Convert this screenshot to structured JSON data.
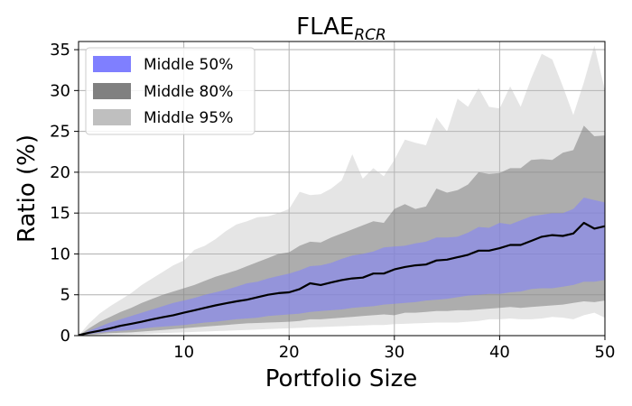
{
  "chart_data": {
    "type": "area",
    "title": "FLAE",
    "title_subscript": "RCR",
    "xlabel": "Portfolio Size",
    "ylabel": "Ratio (%)",
    "xlim": [
      0,
      50
    ],
    "ylim": [
      0,
      36
    ],
    "xticks": [
      10,
      20,
      30,
      40,
      50
    ],
    "yticks": [
      0,
      5,
      10,
      15,
      20,
      25,
      30,
      35
    ],
    "grid": true,
    "legend_position": "top-left",
    "x": [
      1,
      2,
      3,
      4,
      5,
      6,
      7,
      8,
      9,
      10,
      11,
      12,
      13,
      14,
      15,
      16,
      17,
      18,
      19,
      20,
      21,
      22,
      23,
      24,
      25,
      26,
      27,
      28,
      29,
      30,
      31,
      32,
      33,
      34,
      35,
      36,
      37,
      38,
      39,
      40,
      41,
      42,
      43,
      44,
      45,
      46,
      47,
      48,
      49,
      50
    ],
    "series": [
      {
        "name": "Middle 95%",
        "color": "#bfbfbf",
        "opacity": 0.4,
        "lower": [
          0,
          0,
          0.05,
          0.1,
          0.15,
          0.2,
          0.25,
          0.3,
          0.35,
          0.4,
          0.45,
          0.5,
          0.55,
          0.6,
          0.65,
          0.7,
          0.75,
          0.8,
          0.85,
          0.9,
          0.95,
          1.0,
          1.05,
          1.1,
          1.15,
          1.2,
          1.25,
          1.3,
          1.3,
          1.4,
          1.45,
          1.5,
          1.55,
          1.6,
          1.6,
          1.6,
          1.7,
          1.8,
          2.0,
          2.0,
          2.1,
          2.0,
          2.0,
          2.1,
          2.3,
          2.2,
          2.0,
          2.5,
          2.8,
          2.2
        ],
        "upper": [
          1.5,
          2.7,
          3.6,
          4.4,
          5.2,
          6.2,
          7.0,
          7.8,
          8.6,
          9.2,
          10.5,
          11.0,
          11.8,
          12.8,
          13.6,
          14.0,
          14.5,
          14.6,
          15.0,
          15.5,
          17.6,
          17.2,
          17.3,
          18.0,
          19.0,
          22.2,
          19.2,
          20.5,
          19.5,
          21.5,
          24.0,
          23.6,
          23.3,
          26.7,
          25.0,
          29.0,
          28.0,
          30.3,
          28.0,
          27.8,
          30.5,
          28.0,
          31.5,
          34.5,
          33.8,
          30.5,
          27.0,
          31.0,
          35.5,
          30.0
        ]
      },
      {
        "name": "Middle 80%",
        "color": "#808080",
        "opacity": 0.55,
        "lower": [
          0.1,
          0.2,
          0.3,
          0.35,
          0.4,
          0.5,
          0.6,
          0.7,
          0.8,
          0.9,
          1.0,
          1.1,
          1.2,
          1.3,
          1.4,
          1.5,
          1.55,
          1.6,
          1.65,
          1.7,
          1.8,
          2.0,
          2.0,
          2.1,
          2.2,
          2.3,
          2.4,
          2.5,
          2.6,
          2.5,
          2.8,
          2.8,
          2.9,
          3.0,
          3.0,
          3.1,
          3.1,
          3.2,
          3.3,
          3.4,
          3.5,
          3.4,
          3.5,
          3.6,
          3.7,
          3.8,
          4.0,
          4.2,
          4.1,
          4.3
        ],
        "upper": [
          0.9,
          1.7,
          2.3,
          2.9,
          3.4,
          4.0,
          4.5,
          5.0,
          5.4,
          5.8,
          6.2,
          6.7,
          7.2,
          7.6,
          8.0,
          8.5,
          9.0,
          9.5,
          10.0,
          10.2,
          11.0,
          11.5,
          11.4,
          12.0,
          12.5,
          13.0,
          13.5,
          14.0,
          13.8,
          15.5,
          16.1,
          15.5,
          15.8,
          18.0,
          17.5,
          17.8,
          18.5,
          20.0,
          19.8,
          19.9,
          20.5,
          20.5,
          21.5,
          21.6,
          21.5,
          22.4,
          22.7,
          25.7,
          24.4,
          24.5
        ]
      },
      {
        "name": "Middle 50%",
        "color": "#7f7fff",
        "opacity": 0.55,
        "lower": [
          0.2,
          0.35,
          0.5,
          0.6,
          0.7,
          0.85,
          1.0,
          1.1,
          1.2,
          1.3,
          1.45,
          1.6,
          1.7,
          1.85,
          2.0,
          2.1,
          2.2,
          2.4,
          2.5,
          2.6,
          2.7,
          2.9,
          3.0,
          3.1,
          3.2,
          3.4,
          3.5,
          3.6,
          3.8,
          3.9,
          4.0,
          4.1,
          4.3,
          4.4,
          4.5,
          4.7,
          4.9,
          5.0,
          5.1,
          5.1,
          5.3,
          5.4,
          5.7,
          5.8,
          5.8,
          6.0,
          6.2,
          6.6,
          6.6,
          6.8
        ],
        "upper": [
          0.6,
          1.1,
          1.6,
          2.0,
          2.4,
          2.8,
          3.2,
          3.6,
          4.0,
          4.3,
          4.6,
          5.0,
          5.3,
          5.6,
          6.0,
          6.4,
          6.6,
          7.0,
          7.3,
          7.6,
          8.0,
          8.5,
          8.6,
          8.9,
          9.4,
          9.8,
          10.0,
          10.3,
          10.8,
          10.9,
          11.0,
          11.3,
          11.5,
          12.0,
          12.0,
          12.1,
          12.6,
          13.3,
          13.2,
          13.8,
          13.6,
          14.1,
          14.6,
          14.8,
          15.0,
          15.0,
          15.5,
          16.9,
          16.6,
          16.3
        ]
      },
      {
        "name": "Median",
        "color": "#000000",
        "values": [
          0.35,
          0.6,
          0.9,
          1.2,
          1.45,
          1.7,
          2.0,
          2.25,
          2.5,
          2.8,
          3.1,
          3.4,
          3.7,
          3.95,
          4.2,
          4.4,
          4.7,
          5.0,
          5.2,
          5.3,
          5.7,
          6.4,
          6.2,
          6.5,
          6.8,
          7.0,
          7.1,
          7.6,
          7.6,
          8.1,
          8.4,
          8.6,
          8.7,
          9.2,
          9.3,
          9.6,
          9.9,
          10.4,
          10.4,
          10.7,
          11.1,
          11.1,
          11.6,
          12.1,
          12.3,
          12.2,
          12.5,
          13.8,
          13.1,
          13.4
        ]
      }
    ],
    "legend": [
      "Middle 50%",
      "Middle 80%",
      "Middle 95%"
    ]
  }
}
